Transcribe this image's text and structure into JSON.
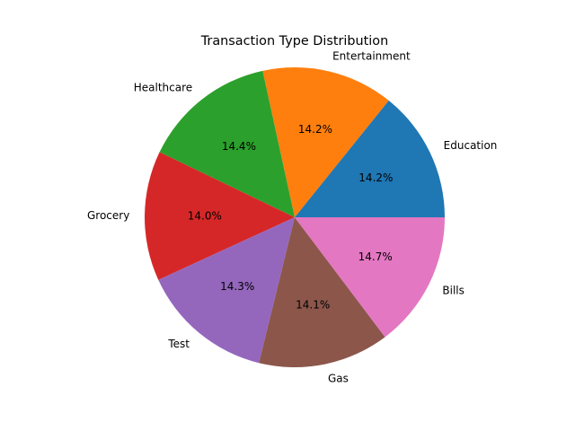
{
  "chart_data": {
    "type": "pie",
    "title": "Transaction Type Distribution",
    "start_angle_deg": 0,
    "direction": "counterclockwise",
    "slices": [
      {
        "label": "Education",
        "percent": 14.2,
        "percent_label": "14.2%",
        "color": "#1f77b4"
      },
      {
        "label": "Entertainment",
        "percent": 14.2,
        "percent_label": "14.2%",
        "color": "#ff7f0e"
      },
      {
        "label": "Healthcare",
        "percent": 14.4,
        "percent_label": "14.4%",
        "color": "#2ca02c"
      },
      {
        "label": "Grocery",
        "percent": 14.0,
        "percent_label": "14.0%",
        "color": "#d62728"
      },
      {
        "label": "Test",
        "percent": 14.3,
        "percent_label": "14.3%",
        "color": "#9467bd"
      },
      {
        "label": "Gas",
        "percent": 14.1,
        "percent_label": "14.1%",
        "color": "#8c564b"
      },
      {
        "label": "Bills",
        "percent": 14.7,
        "percent_label": "14.7%",
        "color": "#e377c2"
      }
    ]
  }
}
